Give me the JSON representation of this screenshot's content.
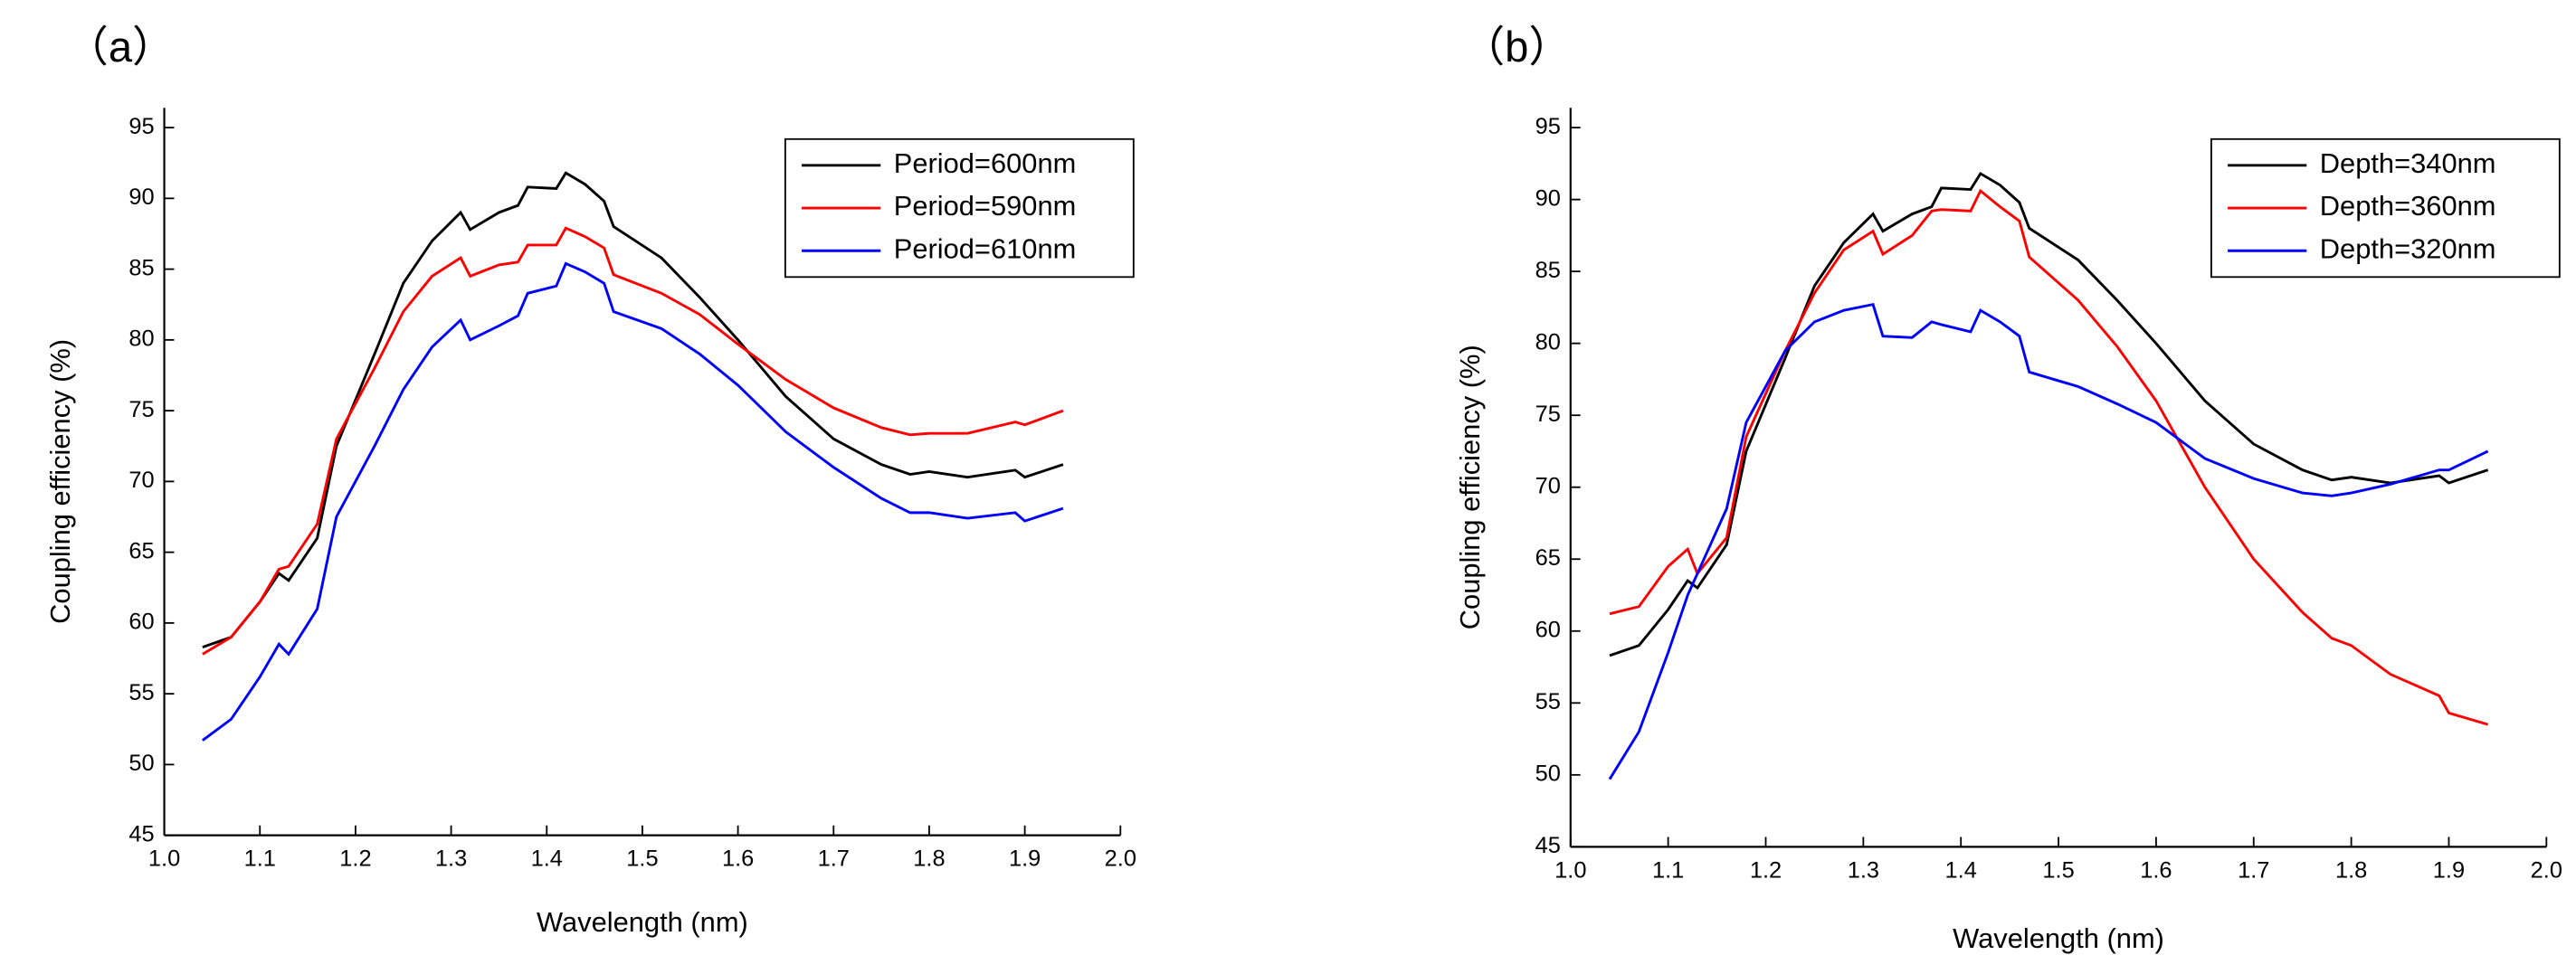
{
  "chart_data": [
    {
      "type": "line",
      "panel_label": "（a）",
      "xlabel": "Wavelength (nm)",
      "ylabel": "Coupling efficiency (%)",
      "x": [
        1.04,
        1.07,
        1.1,
        1.12,
        1.13,
        1.16,
        1.18,
        1.22,
        1.25,
        1.28,
        1.31,
        1.32,
        1.35,
        1.37,
        1.38,
        1.41,
        1.42,
        1.44,
        1.46,
        1.47,
        1.52,
        1.56,
        1.6,
        1.65,
        1.7,
        1.75,
        1.78,
        1.8,
        1.84,
        1.89,
        1.9,
        1.94
      ],
      "series": [
        {
          "name": "Period=600nm",
          "color": "#000000",
          "values": [
            58.3,
            59.0,
            61.5,
            63.5,
            63.0,
            66,
            72.5,
            79,
            84,
            87,
            89,
            87.8,
            89,
            89.5,
            90.8,
            90.7,
            91.8,
            91,
            89.8,
            88,
            85.8,
            83,
            80,
            76,
            73,
            71.2,
            70.5,
            70.7,
            70.3,
            70.8,
            70.3,
            71.2
          ]
        },
        {
          "name": "Period=590nm",
          "color": "#ff0000",
          "values": [
            57.8,
            59,
            61.5,
            63.8,
            64,
            67,
            73,
            78,
            82,
            84.5,
            85.8,
            84.5,
            85.3,
            85.5,
            86.7,
            86.7,
            87.9,
            87.3,
            86.5,
            84.6,
            83.3,
            81.8,
            79.7,
            77.2,
            75.2,
            73.8,
            73.3,
            73.4,
            73.4,
            74.2,
            74,
            75
          ]
        },
        {
          "name": "Period=610nm",
          "color": "#0000ff",
          "values": [
            51.7,
            53.2,
            56.2,
            58.5,
            57.8,
            61,
            67.5,
            72.5,
            76.5,
            79.5,
            81.4,
            80,
            81,
            81.7,
            83.3,
            83.8,
            85.4,
            84.8,
            84,
            82,
            80.8,
            79,
            76.8,
            73.5,
            71,
            68.8,
            67.8,
            67.8,
            67.4,
            67.8,
            67.2,
            68.1
          ]
        }
      ],
      "xlim": [
        1,
        2
      ],
      "xticks": [
        {
          "value": 1,
          "label": "1.0"
        },
        1.1,
        1.2,
        1.3,
        1.4,
        1.5,
        1.6,
        1.7,
        1.8,
        1.9,
        {
          "value": 2,
          "label": "2.0"
        }
      ],
      "ylim": [
        45,
        95
      ],
      "yticks": [
        45,
        50,
        55,
        60,
        65,
        70,
        75,
        80,
        85,
        90,
        95
      ],
      "legend": "upper right",
      "grid": false
    },
    {
      "type": "line",
      "panel_label": "（b）",
      "xlabel": "Wavelength (nm)",
      "ylabel": "Coupling efficiency (%)",
      "x": [
        1.04,
        1.07,
        1.1,
        1.12,
        1.13,
        1.16,
        1.18,
        1.22,
        1.25,
        1.28,
        1.31,
        1.32,
        1.35,
        1.37,
        1.38,
        1.41,
        1.42,
        1.44,
        1.46,
        1.47,
        1.52,
        1.56,
        1.6,
        1.65,
        1.7,
        1.75,
        1.78,
        1.8,
        1.84,
        1.89,
        1.9,
        1.94
      ],
      "series": [
        {
          "name": "Depth=340nm",
          "color": "#000000",
          "values": [
            58.3,
            59.0,
            61.5,
            63.5,
            63.0,
            66,
            72.5,
            79,
            84,
            87,
            89,
            87.8,
            89,
            89.5,
            90.8,
            90.7,
            91.8,
            91,
            89.8,
            88,
            85.8,
            83,
            80,
            76,
            73,
            71.2,
            70.5,
            70.7,
            70.3,
            70.8,
            70.3,
            71.2
          ]
        },
        {
          "name": "Depth=360nm",
          "color": "#ff0000",
          "values": [
            61.2,
            61.7,
            64.5,
            65.7,
            64,
            66.5,
            73.5,
            79.5,
            83.5,
            86.5,
            87.8,
            86.2,
            87.5,
            89.2,
            89.3,
            89.2,
            90.6,
            89.5,
            88.5,
            86,
            83,
            79.8,
            76,
            70,
            65,
            61.3,
            59.5,
            59,
            57,
            55.5,
            54.3,
            53.5
          ]
        },
        {
          "name": "Depth=320nm",
          "color": "#0000ff",
          "values": [
            49.7,
            53,
            58.5,
            62.5,
            64,
            68.5,
            74.5,
            79.5,
            81.5,
            82.3,
            82.7,
            80.5,
            80.4,
            81.5,
            81.3,
            80.8,
            82.3,
            81.5,
            80.5,
            78,
            77,
            75.8,
            74.5,
            72,
            70.6,
            69.6,
            69.4,
            69.6,
            70.2,
            71.2,
            71.2,
            72.5
          ]
        }
      ],
      "xlim": [
        1,
        2
      ],
      "xticks": [
        {
          "value": 1,
          "label": "1.0"
        },
        1.1,
        1.2,
        1.3,
        1.4,
        1.5,
        1.6,
        1.7,
        1.8,
        1.9,
        {
          "value": 2,
          "label": "2.0"
        }
      ],
      "ylim": [
        45,
        95
      ],
      "yticks": [
        45,
        50,
        55,
        60,
        65,
        70,
        75,
        80,
        85,
        90,
        95
      ],
      "legend": "upper right",
      "grid": false
    }
  ]
}
